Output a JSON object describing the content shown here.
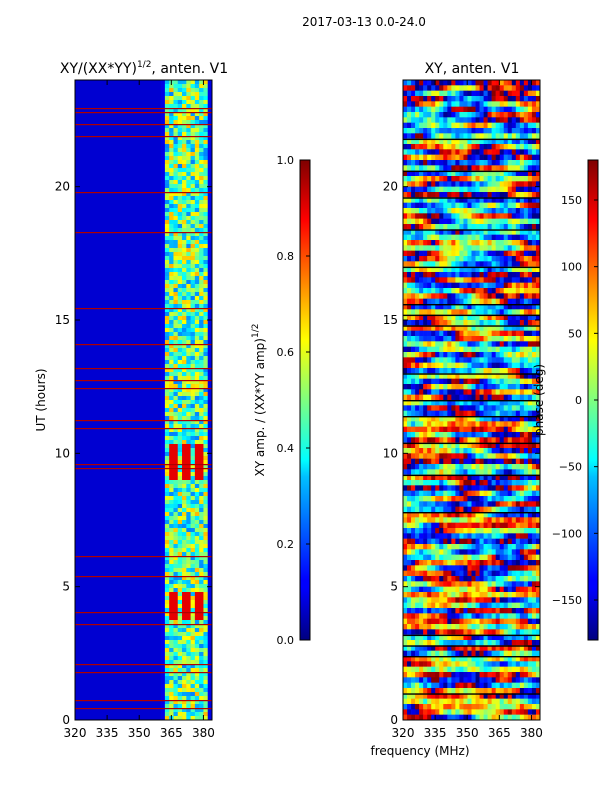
{
  "suptitle": "2017-03-13 0.0-24.0",
  "chart_data": [
    {
      "type": "heatmap",
      "title": "XY/(XX*YY)",
      "title_exponent": "1/2",
      "title_suffix": ", anten. V1",
      "ylabel": "UT (hours)",
      "xlim": [
        320,
        384
      ],
      "ylim": [
        0,
        24
      ],
      "xticks": [
        320,
        335,
        350,
        365,
        380
      ],
      "yticks": [
        0,
        5,
        10,
        15,
        20
      ],
      "colorbar": {
        "label": "XY amp. / (XX*YY amp)",
        "label_exponent": "1/2",
        "range": [
          0.0,
          1.0
        ],
        "ticks": [
          "0.0",
          "0.2",
          "0.4",
          "0.6",
          "0.8",
          "1.0"
        ],
        "tick_values": [
          0.0,
          0.2,
          0.4,
          0.6,
          0.8,
          1.0
        ]
      }
    },
    {
      "type": "heatmap",
      "title": "XY, anten. V1",
      "xlabel": "frequency (MHz)",
      "ylabel": "phase (deg)",
      "xlim": [
        320,
        384
      ],
      "ylim": [
        0,
        24
      ],
      "xticks": [
        320,
        335,
        350,
        365,
        380
      ],
      "yticks": [
        0,
        5,
        10,
        15,
        20
      ],
      "colorbar": {
        "range": [
          -180,
          180
        ],
        "ticks": [
          "−150",
          "−100",
          "−50",
          "0",
          "50",
          "100",
          "150"
        ],
        "tick_values": [
          -150,
          -100,
          -50,
          0,
          50,
          100,
          150
        ]
      }
    }
  ]
}
